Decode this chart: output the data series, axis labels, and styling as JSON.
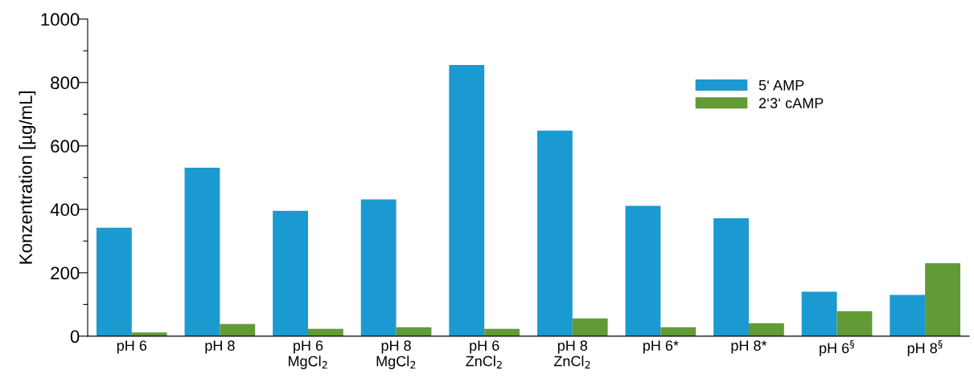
{
  "chart_data": {
    "type": "bar",
    "ylabel": "Konzentration [µg/mL]",
    "categories": [
      "pH 6",
      "pH 8",
      "pH 6\nMgCl$_{2}$",
      "pH 8\nMgCl$_{2}$",
      "pH 6\nZnCl$_{2}$",
      "pH 8\nZnCl$_{2}$",
      "pH 6*",
      "pH 8*",
      "pH 6$^{§}$",
      "pH 8$^{§}$"
    ],
    "series": [
      {
        "name": "5‘ AMP",
        "color": "#1a9ad0",
        "values": [
          342,
          531,
          395,
          431,
          855,
          648,
          411,
          372,
          140,
          130
        ]
      },
      {
        "name": "2‘3‘ cAMP",
        "color": "#629a35",
        "values": [
          12,
          38,
          23,
          28,
          23,
          56,
          28,
          41,
          79,
          230
        ]
      }
    ],
    "ylim": [
      0,
      1000
    ],
    "yticks": [
      0,
      {
        "value": 100,
        "label": null
      },
      200,
      {
        "value": 300,
        "label": null
      },
      400,
      {
        "value": 500,
        "label": null
      },
      600,
      {
        "value": 700,
        "label": null
      },
      800,
      {
        "value": 900,
        "label": null
      },
      1000
    ],
    "legend": "top right",
    "grid": false
  }
}
